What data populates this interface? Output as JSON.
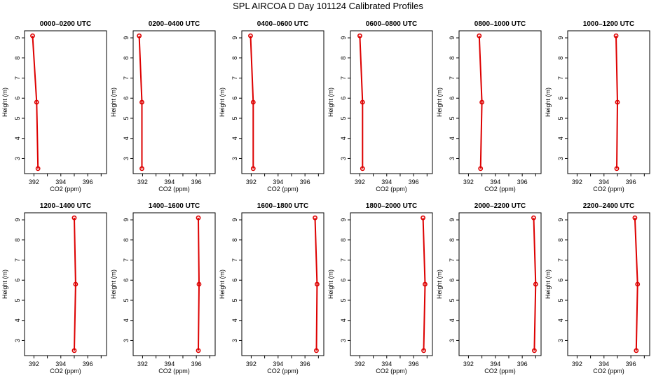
{
  "figure": {
    "title": "SPL AIRCOA D  Day 101124  Calibrated Profiles"
  },
  "style": {
    "line_color": "#dd0000",
    "marker_color": "#dd0000",
    "marker": "open-circle"
  },
  "chart_data": [
    {
      "type": "line",
      "title": "0000–0200 UTC",
      "xlabel": "CO2 (ppm)",
      "ylabel": "Height (m)",
      "xlim": [
        391.3,
        397.4
      ],
      "ylim": [
        2.25,
        9.35
      ],
      "xticks": [
        392,
        394,
        396
      ],
      "yticks": [
        3,
        4,
        5,
        6,
        7,
        8,
        9
      ],
      "heights": [
        2.5,
        5.8,
        9.1
      ],
      "values": [
        392.3,
        392.2,
        391.9
      ]
    },
    {
      "type": "line",
      "title": "0200–0400 UTC",
      "xlabel": "CO2 (ppm)",
      "ylabel": "Height (m)",
      "xlim": [
        391.3,
        397.4
      ],
      "ylim": [
        2.25,
        9.35
      ],
      "xticks": [
        392,
        394,
        396
      ],
      "yticks": [
        3,
        4,
        5,
        6,
        7,
        8,
        9
      ],
      "heights": [
        2.5,
        5.8,
        9.1
      ],
      "values": [
        391.95,
        391.95,
        391.75
      ]
    },
    {
      "type": "line",
      "title": "0400–0600 UTC",
      "xlabel": "CO2 (ppm)",
      "ylabel": "Height (m)",
      "xlim": [
        391.3,
        397.4
      ],
      "ylim": [
        2.25,
        9.35
      ],
      "xticks": [
        392,
        394,
        396
      ],
      "yticks": [
        3,
        4,
        5,
        6,
        7,
        8,
        9
      ],
      "heights": [
        2.5,
        5.8,
        9.1
      ],
      "values": [
        392.15,
        392.15,
        391.95
      ]
    },
    {
      "type": "line",
      "title": "0600–0800 UTC",
      "xlabel": "CO2 (ppm)",
      "ylabel": "Height (m)",
      "xlim": [
        391.3,
        397.4
      ],
      "ylim": [
        2.25,
        9.35
      ],
      "xticks": [
        392,
        394,
        396
      ],
      "yticks": [
        3,
        4,
        5,
        6,
        7,
        8,
        9
      ],
      "heights": [
        2.5,
        5.8,
        9.1
      ],
      "values": [
        392.2,
        392.2,
        392.0
      ]
    },
    {
      "type": "line",
      "title": "0800–1000 UTC",
      "xlabel": "CO2 (ppm)",
      "ylabel": "Height (m)",
      "xlim": [
        391.3,
        397.4
      ],
      "ylim": [
        2.25,
        9.35
      ],
      "xticks": [
        392,
        394,
        396
      ],
      "yticks": [
        3,
        4,
        5,
        6,
        7,
        8,
        9
      ],
      "heights": [
        2.5,
        5.8,
        9.1
      ],
      "values": [
        392.9,
        393.0,
        392.8
      ]
    },
    {
      "type": "line",
      "title": "1000–1200 UTC",
      "xlabel": "CO2 (ppm)",
      "ylabel": "Height (m)",
      "xlim": [
        391.3,
        397.4
      ],
      "ylim": [
        2.25,
        9.35
      ],
      "xticks": [
        392,
        394,
        396
      ],
      "yticks": [
        3,
        4,
        5,
        6,
        7,
        8,
        9
      ],
      "heights": [
        2.5,
        5.8,
        9.1
      ],
      "values": [
        394.95,
        395.0,
        394.9
      ]
    },
    {
      "type": "line",
      "title": "1200–1400 UTC",
      "xlabel": "CO2 (ppm)",
      "ylabel": "Height (m)",
      "xlim": [
        391.3,
        397.4
      ],
      "ylim": [
        2.25,
        9.35
      ],
      "xticks": [
        392,
        394,
        396
      ],
      "yticks": [
        3,
        4,
        5,
        6,
        7,
        8,
        9
      ],
      "heights": [
        2.5,
        5.8,
        9.1
      ],
      "values": [
        395.0,
        395.1,
        395.0
      ]
    },
    {
      "type": "line",
      "title": "1400–1600 UTC",
      "xlabel": "CO2 (ppm)",
      "ylabel": "Height (m)",
      "xlim": [
        391.3,
        397.4
      ],
      "ylim": [
        2.25,
        9.35
      ],
      "xticks": [
        392,
        394,
        396
      ],
      "yticks": [
        3,
        4,
        5,
        6,
        7,
        8,
        9
      ],
      "heights": [
        2.5,
        5.8,
        9.1
      ],
      "values": [
        396.15,
        396.2,
        396.15
      ]
    },
    {
      "type": "line",
      "title": "1600–1800 UTC",
      "xlabel": "CO2 (ppm)",
      "ylabel": "Height (m)",
      "xlim": [
        391.3,
        397.4
      ],
      "ylim": [
        2.25,
        9.35
      ],
      "xticks": [
        392,
        394,
        396
      ],
      "yticks": [
        3,
        4,
        5,
        6,
        7,
        8,
        9
      ],
      "heights": [
        2.5,
        5.8,
        9.1
      ],
      "values": [
        396.85,
        396.9,
        396.75
      ]
    },
    {
      "type": "line",
      "title": "1800–2000 UTC",
      "xlabel": "CO2 (ppm)",
      "ylabel": "Height (m)",
      "xlim": [
        391.3,
        397.4
      ],
      "ylim": [
        2.25,
        9.35
      ],
      "xticks": [
        392,
        394,
        396
      ],
      "yticks": [
        3,
        4,
        5,
        6,
        7,
        8,
        9
      ],
      "heights": [
        2.5,
        5.8,
        9.1
      ],
      "values": [
        396.75,
        396.85,
        396.7
      ]
    },
    {
      "type": "line",
      "title": "2000–2200 UTC",
      "xlabel": "CO2 (ppm)",
      "ylabel": "Height (m)",
      "xlim": [
        391.3,
        397.4
      ],
      "ylim": [
        2.25,
        9.35
      ],
      "xticks": [
        392,
        394,
        396
      ],
      "yticks": [
        3,
        4,
        5,
        6,
        7,
        8,
        9
      ],
      "heights": [
        2.5,
        5.8,
        9.1
      ],
      "values": [
        396.9,
        397.0,
        396.85
      ]
    },
    {
      "type": "line",
      "title": "2200–2400 UTC",
      "xlabel": "CO2 (ppm)",
      "ylabel": "Height (m)",
      "xlim": [
        391.3,
        397.4
      ],
      "ylim": [
        2.25,
        9.35
      ],
      "xticks": [
        392,
        394,
        396
      ],
      "yticks": [
        3,
        4,
        5,
        6,
        7,
        8,
        9
      ],
      "heights": [
        2.5,
        5.8,
        9.1
      ],
      "values": [
        396.4,
        396.5,
        396.3
      ]
    }
  ]
}
